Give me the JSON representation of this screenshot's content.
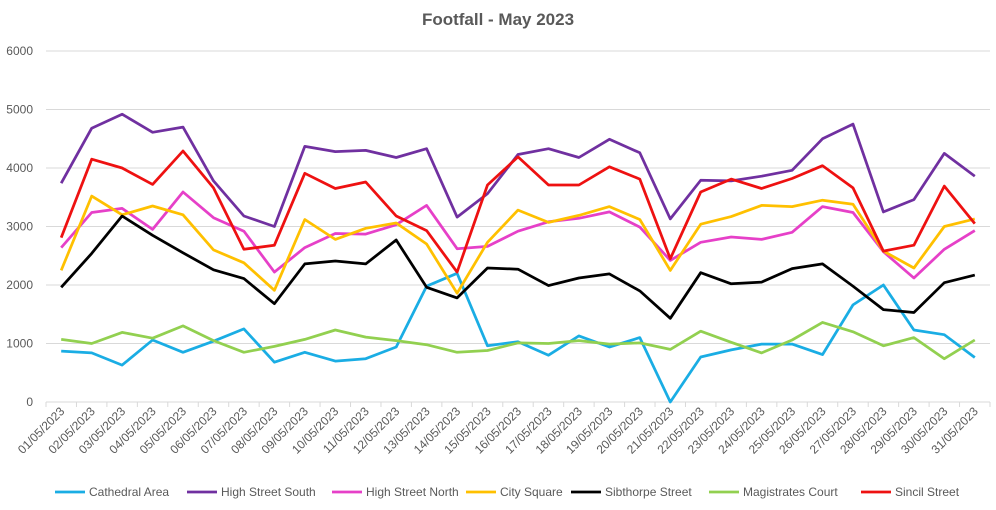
{
  "chart_data": {
    "type": "line",
    "title": "Footfall - May 2023",
    "xlabel": "",
    "ylabel": "",
    "ylim": [
      0,
      6000
    ],
    "yticks": [
      0,
      1000,
      2000,
      3000,
      4000,
      5000,
      6000
    ],
    "grid": true,
    "legend_position": "bottom",
    "categories": [
      "01/05/2023",
      "02/05/2023",
      "03/05/2023",
      "04/05/2023",
      "05/05/2023",
      "06/05/2023",
      "07/05/2023",
      "08/05/2023",
      "09/05/2023",
      "10/05/2023",
      "11/05/2023",
      "12/05/2023",
      "13/05/2023",
      "14/05/2023",
      "15/05/2023",
      "16/05/2023",
      "17/05/2023",
      "18/05/2023",
      "19/05/2023",
      "20/05/2023",
      "21/05/2023",
      "22/05/2023",
      "23/05/2023",
      "24/05/2023",
      "25/05/2023",
      "26/05/2023",
      "27/05/2023",
      "28/05/2023",
      "29/05/2023",
      "30/05/2023",
      "31/05/2023"
    ],
    "series": [
      {
        "name": "Cathedral Area",
        "color": "#1aade4",
        "values": [
          870,
          840,
          630,
          1060,
          850,
          1040,
          1250,
          680,
          850,
          700,
          740,
          940,
          1980,
          2200,
          960,
          1030,
          800,
          1130,
          940,
          1100,
          0,
          770,
          890,
          990,
          990,
          810,
          1660,
          2000,
          1230,
          1150,
          760
        ]
      },
      {
        "name": "High Street South",
        "color": "#7030a0",
        "values": [
          3740,
          4680,
          4920,
          4610,
          4700,
          3780,
          3180,
          3000,
          4370,
          4280,
          4300,
          4180,
          4330,
          3160,
          3560,
          4230,
          4330,
          4180,
          4490,
          4260,
          3130,
          3790,
          3780,
          3860,
          3960,
          4500,
          4750,
          3250,
          3460,
          4250,
          3860
        ]
      },
      {
        "name": "High Street North",
        "color": "#e640c8",
        "values": [
          2640,
          3240,
          3310,
          2950,
          3590,
          3150,
          2920,
          2220,
          2640,
          2880,
          2870,
          3030,
          3360,
          2620,
          2660,
          2920,
          3080,
          3140,
          3250,
          2990,
          2420,
          2730,
          2820,
          2780,
          2900,
          3340,
          3240,
          2570,
          2120,
          2610,
          2930
        ]
      },
      {
        "name": "City Square",
        "color": "#ffc000",
        "values": [
          2250,
          3520,
          3200,
          3350,
          3200,
          2600,
          2380,
          1910,
          3120,
          2780,
          2970,
          3060,
          2700,
          1860,
          2730,
          3280,
          3070,
          3190,
          3340,
          3120,
          2250,
          3040,
          3170,
          3360,
          3340,
          3450,
          3380,
          2580,
          2290,
          3000,
          3130
        ]
      },
      {
        "name": "Sibthorpe Street",
        "color": "#000000",
        "values": [
          1960,
          2540,
          3180,
          2850,
          2550,
          2260,
          2110,
          1680,
          2360,
          2410,
          2360,
          2770,
          1960,
          1780,
          2290,
          2270,
          1990,
          2120,
          2190,
          1900,
          1430,
          2210,
          2020,
          2050,
          2280,
          2360,
          1980,
          1580,
          1530,
          2040,
          2170
        ]
      },
      {
        "name": "Magistrates Court",
        "color": "#92d050",
        "values": [
          1070,
          1000,
          1190,
          1090,
          1300,
          1050,
          850,
          950,
          1070,
          1230,
          1110,
          1050,
          980,
          850,
          880,
          1010,
          1000,
          1050,
          990,
          1010,
          900,
          1210,
          1020,
          840,
          1060,
          1360,
          1200,
          960,
          1100,
          740,
          1060
        ]
      },
      {
        "name": "Sincil Street",
        "color": "#ee1111",
        "values": [
          2810,
          4150,
          4000,
          3720,
          4290,
          3660,
          2610,
          2680,
          3910,
          3650,
          3760,
          3180,
          2930,
          2220,
          3710,
          4190,
          3710,
          3710,
          4020,
          3810,
          2450,
          3590,
          3810,
          3650,
          3820,
          4040,
          3660,
          2580,
          2680,
          3690,
          3050
        ]
      }
    ]
  }
}
